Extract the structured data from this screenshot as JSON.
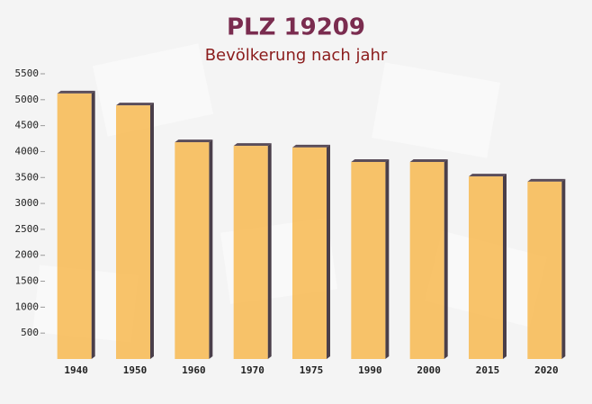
{
  "chart_data": {
    "type": "bar",
    "title": "PLZ 19209",
    "subtitle": "Bevölkerung nach jahr",
    "categories": [
      "1940",
      "1950",
      "1960",
      "1970",
      "1975",
      "1990",
      "2000",
      "2015",
      "2020"
    ],
    "values": [
      5120,
      4890,
      4180,
      4110,
      4080,
      3800,
      3800,
      3520,
      3420
    ],
    "color": "#f7bd5a",
    "ylim": [
      0,
      5500
    ],
    "yticks": [
      500,
      1000,
      1500,
      2000,
      2500,
      3000,
      3500,
      4000,
      4500,
      5000,
      5500
    ],
    "grid": false
  }
}
